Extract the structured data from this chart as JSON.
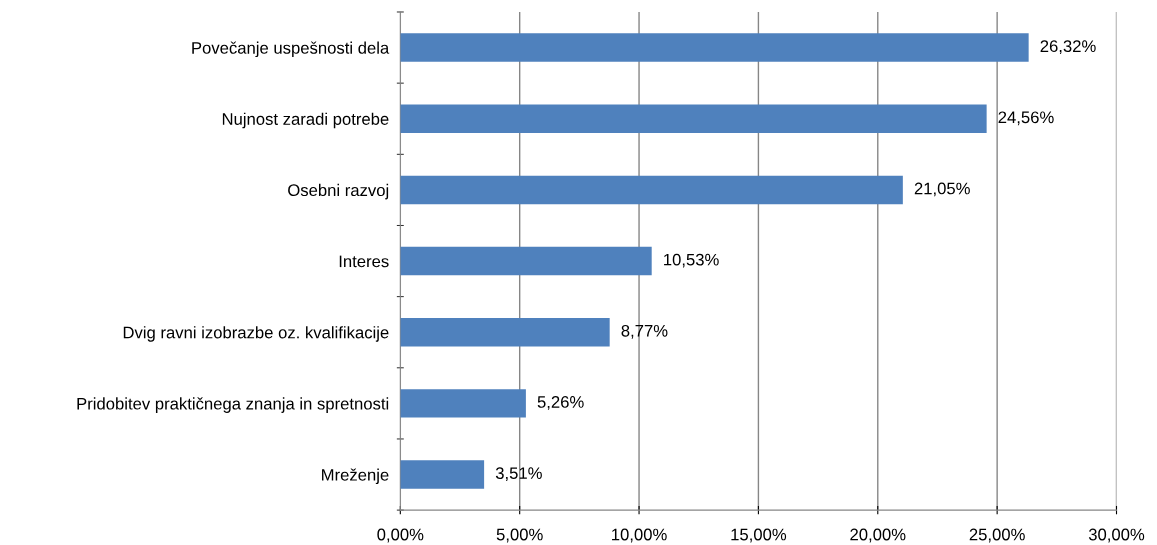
{
  "chart_data": {
    "type": "bar",
    "orientation": "horizontal",
    "categories": [
      "Povečanje uspešnosti dela",
      "Nujnost zaradi potrebe",
      "Osebni razvoj",
      "Interes",
      "Dvig ravni izobrazbe oz. kvalifikacije",
      "Pridobitev praktičnega znanja in spretnosti",
      "Mreženje"
    ],
    "values": [
      26.32,
      24.56,
      21.05,
      10.53,
      8.77,
      5.26,
      3.51
    ],
    "value_labels": [
      "26,32%",
      "24,56%",
      "21,05%",
      "10,53%",
      "8,77%",
      "5,26%",
      "3,51%"
    ],
    "color": "#4f81bd",
    "xlim": [
      0,
      30
    ],
    "xticks": [
      {
        "value": 0,
        "label": "0,00%"
      },
      {
        "value": 5,
        "label": "5,00%"
      },
      {
        "value": 10,
        "label": "10,00%"
      },
      {
        "value": 15,
        "label": "15,00%"
      },
      {
        "value": 20,
        "label": "20,00%"
      },
      {
        "value": 25,
        "label": "25,00%"
      },
      {
        "value": 30,
        "label": "30,00%"
      }
    ],
    "grid": "x",
    "legend": false
  }
}
